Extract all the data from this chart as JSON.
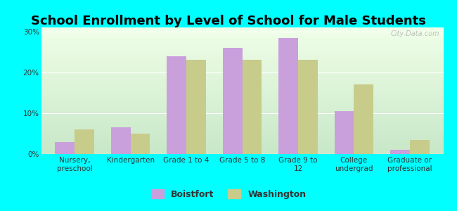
{
  "title": "School Enrollment by Level of School for Male Students",
  "categories": [
    "Nursery,\npreschool",
    "Kindergarten",
    "Grade 1 to 4",
    "Grade 5 to 8",
    "Grade 9 to\n12",
    "College\nundergrad",
    "Graduate or\nprofessional"
  ],
  "boistfort": [
    3.0,
    6.5,
    24.0,
    26.0,
    28.5,
    10.5,
    1.0
  ],
  "washington": [
    6.0,
    5.0,
    23.0,
    23.0,
    23.0,
    17.0,
    3.5
  ],
  "boistfort_color": "#C9A0DC",
  "washington_color": "#C8CC8A",
  "bg_color": "#00FFFF",
  "yticks": [
    0,
    10,
    20,
    30
  ],
  "ylim": [
    0,
    31
  ],
  "bar_width": 0.35,
  "legend_boistfort": "Boistfort",
  "legend_washington": "Washington",
  "watermark": "City-Data.com",
  "title_fontsize": 13,
  "tick_fontsize": 7.5,
  "legend_fontsize": 9,
  "grad_top": "#c8e8c8",
  "grad_bottom": "#f0ffe8"
}
